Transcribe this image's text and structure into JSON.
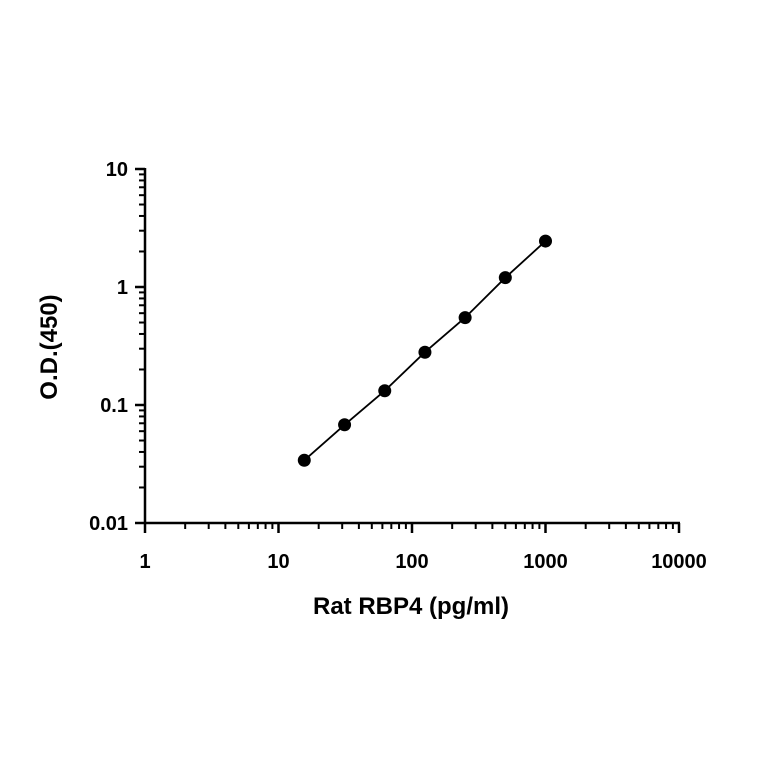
{
  "chart_data": {
    "type": "scatter",
    "xlabel": "Rat RBP4 (pg/ml)",
    "ylabel": "O.D.(450)",
    "x_scale": "log",
    "y_scale": "log",
    "xlim": [
      1,
      10000
    ],
    "ylim": [
      0.01,
      10
    ],
    "x_ticks": [
      1,
      10,
      100,
      1000,
      10000
    ],
    "x_tick_labels": [
      "1",
      "10",
      "100",
      "1000",
      "10000"
    ],
    "y_ticks": [
      0.01,
      0.1,
      1,
      10
    ],
    "y_tick_labels": [
      "0.01",
      "0.1",
      "1",
      "10"
    ],
    "grid": false,
    "series": [
      {
        "x": [
          15.6,
          31.25,
          62.5,
          125,
          250,
          500,
          1000
        ],
        "y": [
          0.034,
          0.068,
          0.132,
          0.28,
          0.55,
          1.2,
          2.45
        ],
        "color": "#000000",
        "marker": "filled-circle",
        "fit_line": true
      }
    ]
  }
}
